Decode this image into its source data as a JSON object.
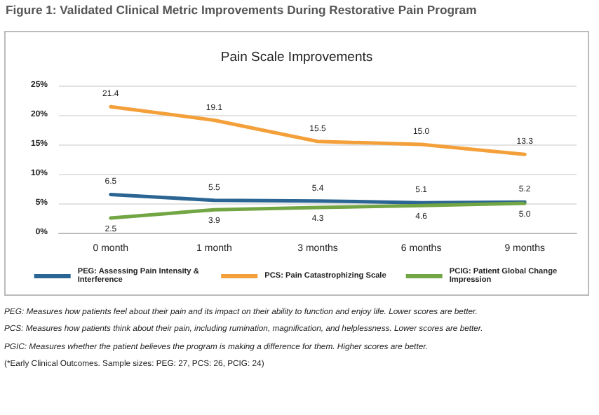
{
  "chart_data": {
    "type": "line",
    "title": "Figure 1: Validated Clinical Metric Improvements During Restorative Pain Program",
    "subtitle": "Pain Scale Improvements",
    "categories": [
      "0 month",
      "1 month",
      "3 months",
      "6 months",
      "9 months"
    ],
    "series": [
      {
        "name": "PEG: Assessing Pain Intensity & Interference",
        "color": "#2a6593",
        "values": [
          6.5,
          5.5,
          5.4,
          5.1,
          5.2
        ],
        "value_labels": [
          "6.5",
          "5.5",
          "5.4",
          "5.1",
          "5.2"
        ]
      },
      {
        "name": "PCS: Pain Catastrophizing Scale",
        "color": "#f4a03a",
        "values": [
          21.4,
          19.1,
          15.5,
          15.0,
          13.3
        ],
        "value_labels": [
          "21.4",
          "19.1",
          "15.5",
          "15.0",
          "13.3"
        ]
      },
      {
        "name": "PCIG: Patient Global Change Impression",
        "color": "#72a544",
        "values": [
          2.5,
          3.9,
          4.3,
          4.6,
          5.0
        ],
        "value_labels": [
          "2.5",
          "3.9",
          "4.3",
          "4.6",
          "5.0"
        ]
      }
    ],
    "ylim": [
      0,
      25
    ],
    "yticks": [
      {
        "value": 0,
        "label": "0%"
      },
      {
        "value": 5,
        "label": "5%"
      },
      {
        "value": 10,
        "label": "10%"
      },
      {
        "value": 15,
        "label": "15%"
      },
      {
        "value": 20,
        "label": "20%"
      },
      {
        "value": 25,
        "label": "25%"
      }
    ],
    "grid": "y",
    "legend": "bottom",
    "marker": "none",
    "line_style": "solid",
    "annotations": [
      "PEG: Measures how patients feel about their pain and its impact on their ability to function and enjoy life. Lower scores are better.",
      "PCS: Measures how patients think about their pain, including rumination, magnification, and helplessness. Lower scores are better.",
      "PGIC: Measures whether the patient believes the program is making a difference for them. Higher scores are better.",
      "(*Early Clinical Outcomes. Sample sizes: PEG: 27, PCS: 26, PCIG: 24)"
    ]
  }
}
